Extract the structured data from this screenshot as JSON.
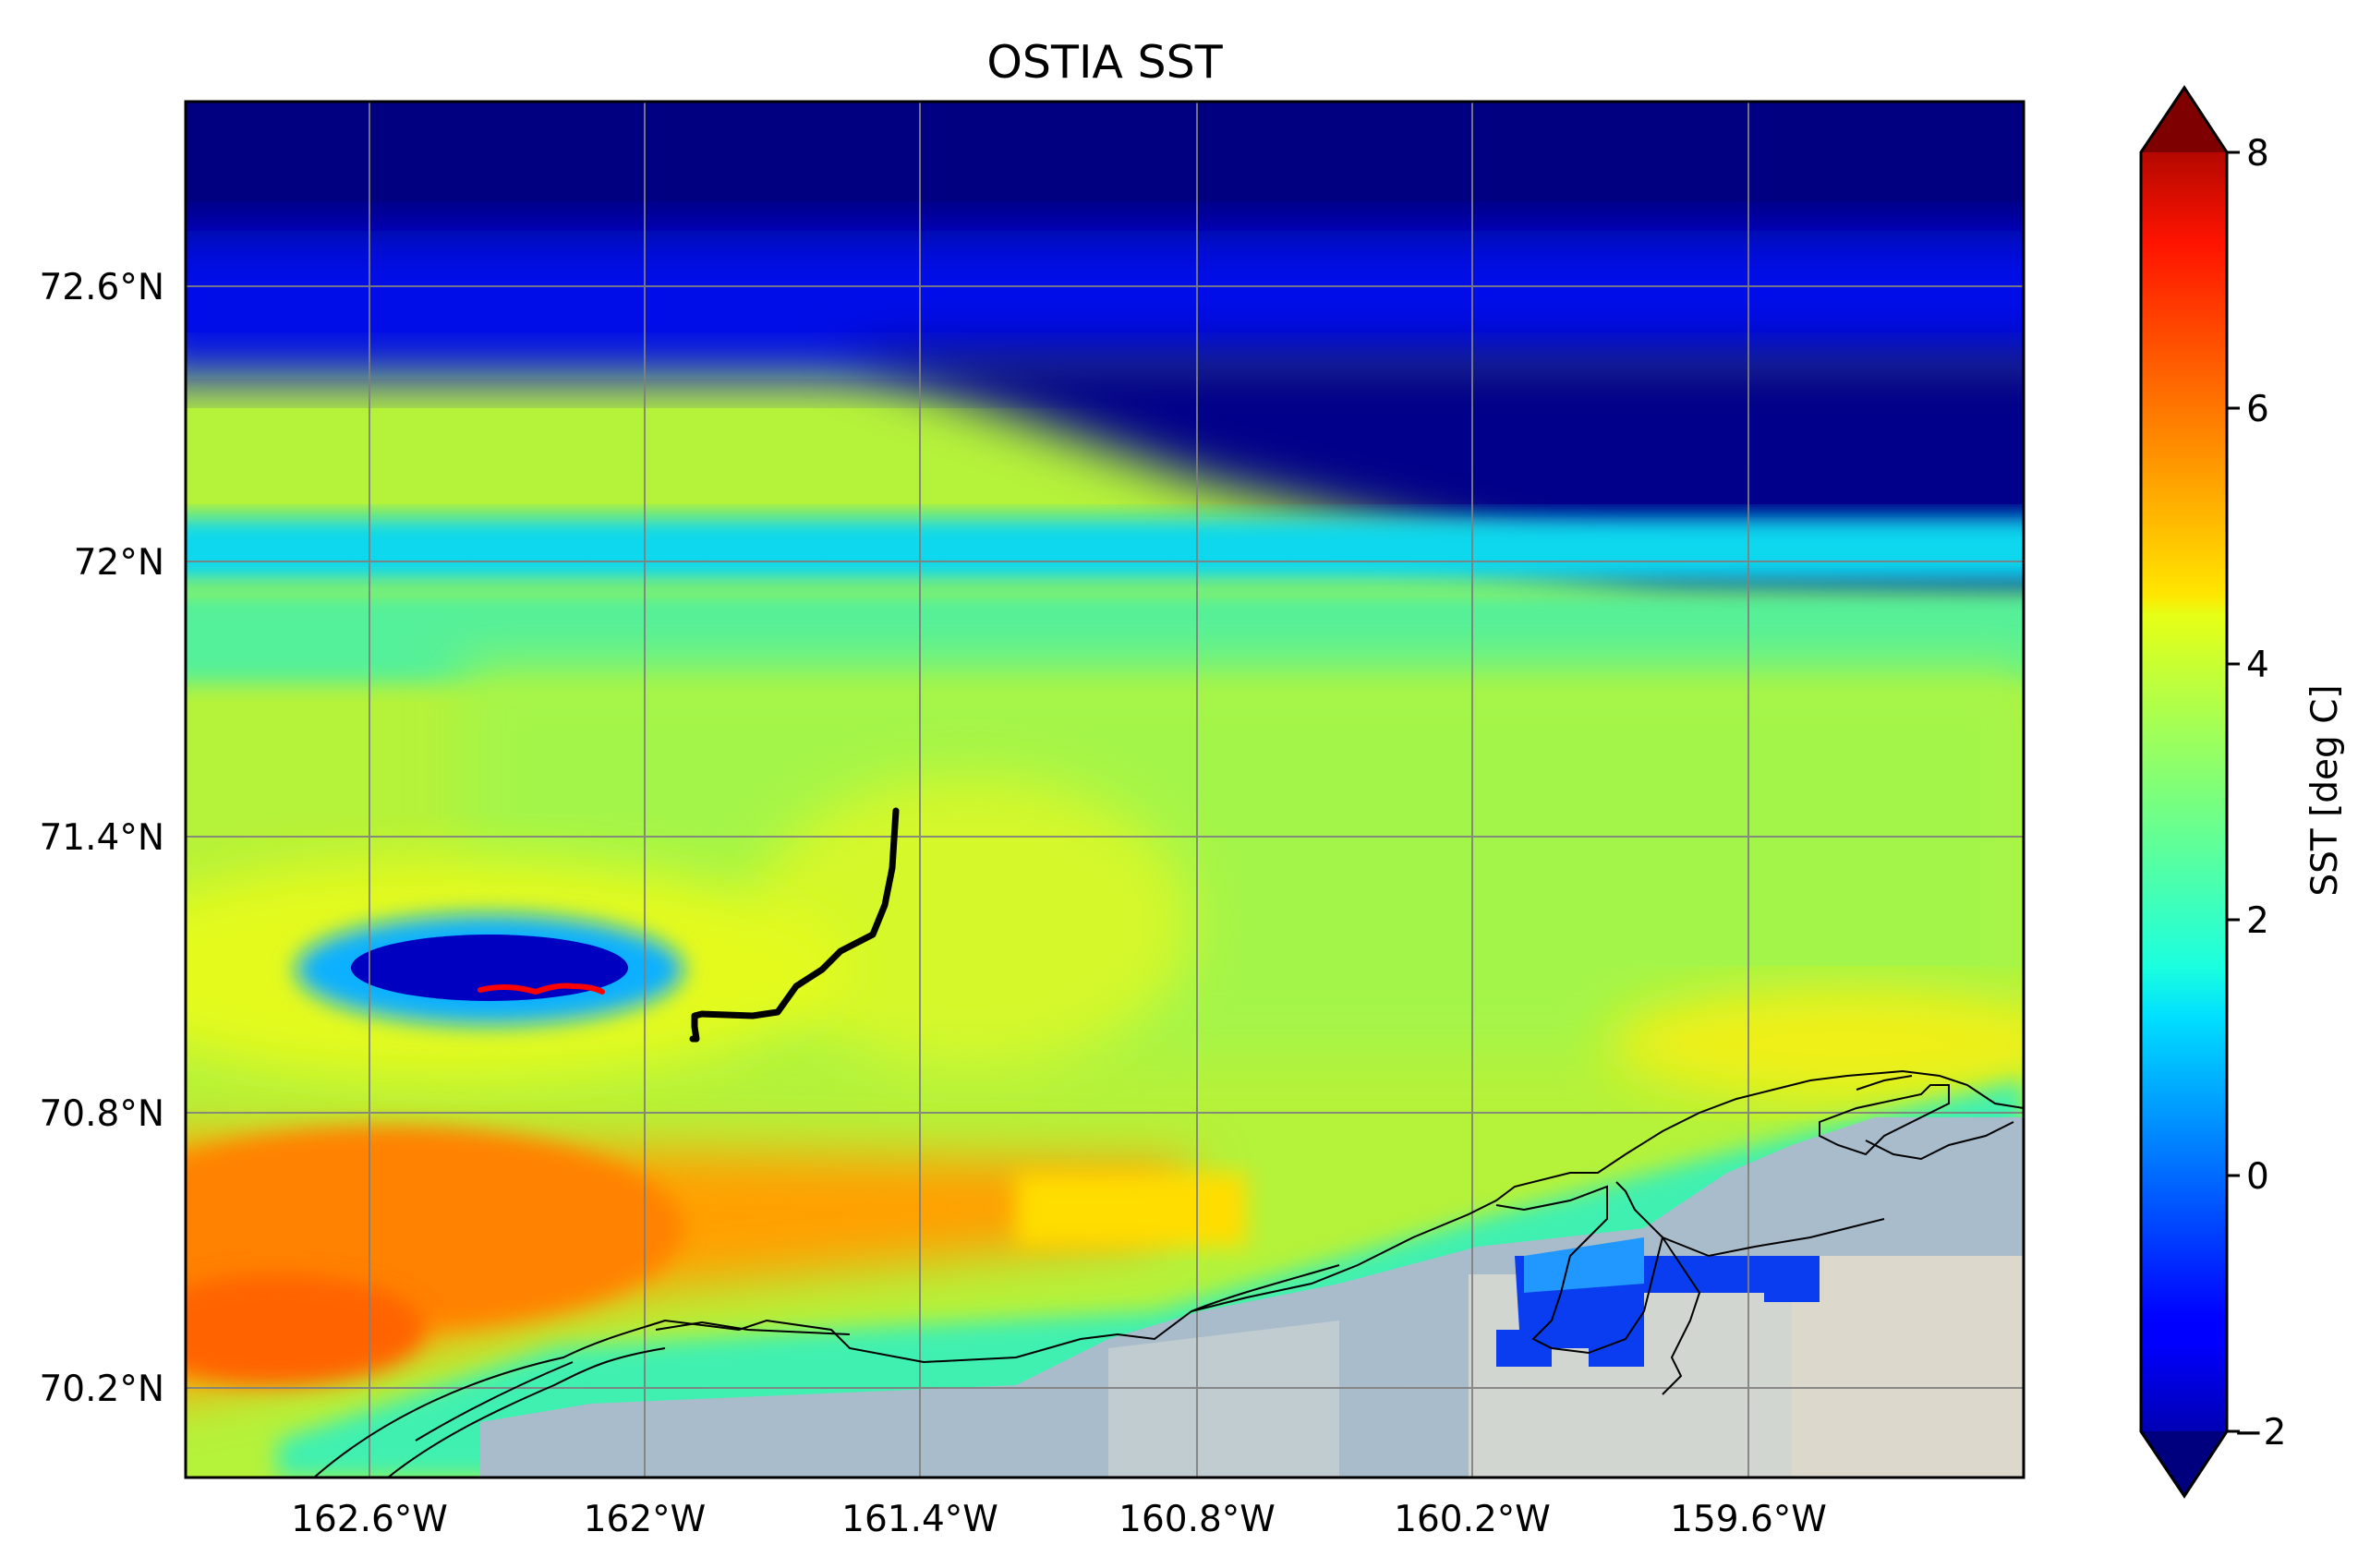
{
  "title": "OSTIA SST",
  "colorbar": {
    "label": "SST [deg C]",
    "min": -2,
    "max": 8,
    "ticks": [
      "8",
      "6",
      "4",
      "2",
      "0",
      "−2"
    ],
    "colormap": "jet",
    "extend": "both"
  },
  "axes": {
    "lon_range": [
      -163.0,
      -159.0
    ],
    "lat_range": [
      70.0,
      73.0
    ],
    "x_ticks": [
      "162.6°W",
      "162°W",
      "161.4°W",
      "160.8°W",
      "160.2°W",
      "159.6°W"
    ],
    "y_ticks": [
      "72.6°N",
      "72°N",
      "71.4°N",
      "70.8°N",
      "70.2°N"
    ],
    "gridlines": true
  },
  "tracks": [
    {
      "color": "#000000",
      "description": "ship track"
    },
    {
      "color": "#ff0000",
      "description": "float track"
    }
  ],
  "colors": {
    "land": "#dcd8cc",
    "sea_ice": "#a9bccb",
    "coastline": "#000000"
  }
}
